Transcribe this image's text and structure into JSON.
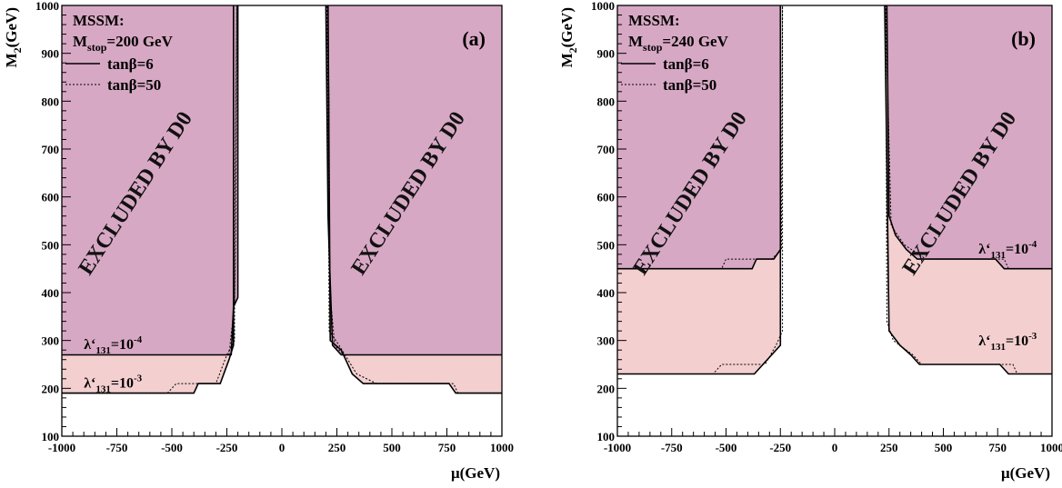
{
  "colors": {
    "strong_region": "#d7a8c4",
    "weak_region": "#f3cfd0",
    "frame": "#000000"
  },
  "labels": {
    "excluded": "EXCLUDED BY D0",
    "legend_title": "MSSM:",
    "legend_solid": "tanβ=6",
    "legend_dotted": "tanβ=50",
    "lambda_prefix": "λ‘",
    "lambda_sub": "131",
    "lambda_base": "=10",
    "x_title": "μ(GeV)",
    "y_title_m": "M",
    "y_title_sub": "2",
    "y_title_unit": "(GeV)"
  },
  "chart_data": [
    {
      "type": "area",
      "panel_label": "(a)",
      "stop_mass": "=200 GeV",
      "xlabel": "μ(GeV)",
      "ylabel": "M2(GeV)",
      "xlim": [
        -1000,
        1000
      ],
      "ylim": [
        100,
        1000
      ],
      "x_ticks": [
        -1000,
        -750,
        -500,
        -250,
        0,
        250,
        500,
        750,
        1000
      ],
      "y_ticks": [
        100,
        200,
        300,
        400,
        500,
        600,
        700,
        800,
        900,
        1000
      ],
      "series": [
        {
          "name": "λ‘131=10-3",
          "exponent": "-3",
          "left_region": [
            [
              -1000,
              190
            ],
            [
              -400,
              190
            ],
            [
              -380,
              210
            ],
            [
              -280,
              210
            ],
            [
              -240,
              260
            ],
            [
              -220,
              290
            ],
            [
              -220,
              1000
            ],
            [
              -1000,
              1000
            ]
          ],
          "right_region": [
            [
              1000,
              190
            ],
            [
              790,
              190
            ],
            [
              760,
              210
            ],
            [
              370,
              210
            ],
            [
              320,
              230
            ],
            [
              270,
              280
            ],
            [
              220,
              300
            ],
            [
              210,
              1000
            ],
            [
              1000,
              1000
            ]
          ],
          "dotted_left": [
            [
              -1000,
              190
            ],
            [
              -520,
              190
            ],
            [
              -480,
              210
            ],
            [
              -300,
              210
            ],
            [
              -250,
              270
            ],
            [
              -215,
              300
            ],
            [
              -215,
              520
            ],
            [
              -205,
              1000
            ]
          ],
          "dotted_right": [
            [
              1000,
              190
            ],
            [
              800,
              190
            ],
            [
              780,
              210
            ],
            [
              430,
              210
            ],
            [
              340,
              230
            ],
            [
              260,
              290
            ],
            [
              215,
              320
            ],
            [
              210,
              800
            ],
            [
              205,
              1000
            ]
          ]
        },
        {
          "name": "λ‘131=10-4",
          "exponent": "-4",
          "left_region": [
            [
              -1000,
              270
            ],
            [
              -230,
              270
            ],
            [
              -220,
              370
            ],
            [
              -200,
              390
            ],
            [
              -200,
              1000
            ],
            [
              -1000,
              1000
            ]
          ],
          "right_region": [
            [
              1000,
              270
            ],
            [
              270,
              270
            ],
            [
              230,
              290
            ],
            [
              220,
              420
            ],
            [
              210,
              560
            ],
            [
              200,
              1000
            ],
            [
              1000,
              1000
            ]
          ],
          "dotted_left": [
            [
              -1000,
              270
            ],
            [
              -240,
              270
            ],
            [
              -215,
              380
            ],
            [
              -210,
              520
            ],
            [
              -205,
              1000
            ]
          ],
          "dotted_right": [
            [
              1000,
              270
            ],
            [
              280,
              270
            ],
            [
              240,
              290
            ],
            [
              215,
              420
            ],
            [
              215,
              800
            ],
            [
              205,
              1000
            ]
          ]
        }
      ]
    },
    {
      "type": "area",
      "panel_label": "(b)",
      "stop_mass": "=240 GeV",
      "xlabel": "μ(GeV)",
      "ylabel": "M2(GeV)",
      "xlim": [
        -1000,
        1000
      ],
      "ylim": [
        100,
        1000
      ],
      "x_ticks": [
        -1000,
        -750,
        -500,
        -250,
        0,
        250,
        500,
        750,
        1000
      ],
      "y_ticks": [
        100,
        200,
        300,
        400,
        500,
        600,
        700,
        800,
        900,
        1000
      ],
      "series": [
        {
          "name": "λ‘131=10-3",
          "exponent": "-3",
          "left_region": [
            [
              -1000,
              230
            ],
            [
              -370,
              230
            ],
            [
              -330,
              250
            ],
            [
              -290,
              270
            ],
            [
              -250,
              290
            ],
            [
              -250,
              1000
            ],
            [
              -1000,
              1000
            ]
          ],
          "right_region": [
            [
              1000,
              230
            ],
            [
              800,
              230
            ],
            [
              760,
              250
            ],
            [
              390,
              250
            ],
            [
              350,
              270
            ],
            [
              300,
              290
            ],
            [
              250,
              320
            ],
            [
              230,
              1000
            ],
            [
              1000,
              1000
            ]
          ],
          "dotted_left": [
            [
              -1000,
              230
            ],
            [
              -560,
              230
            ],
            [
              -520,
              250
            ],
            [
              -320,
              250
            ],
            [
              -270,
              290
            ],
            [
              -240,
              320
            ],
            [
              -240,
              1000
            ]
          ],
          "dotted_right": [
            [
              1000,
              230
            ],
            [
              840,
              230
            ],
            [
              820,
              250
            ],
            [
              400,
              250
            ],
            [
              360,
              270
            ],
            [
              270,
              300
            ],
            [
              240,
              340
            ],
            [
              235,
              1000
            ]
          ]
        },
        {
          "name": "λ‘131=10-4",
          "exponent": "-4",
          "left_region": [
            [
              -1000,
              450
            ],
            [
              -380,
              450
            ],
            [
              -360,
              470
            ],
            [
              -280,
              470
            ],
            [
              -250,
              490
            ],
            [
              -250,
              1000
            ],
            [
              -1000,
              1000
            ]
          ],
          "right_region": [
            [
              1000,
              450
            ],
            [
              780,
              450
            ],
            [
              740,
              470
            ],
            [
              380,
              470
            ],
            [
              330,
              490
            ],
            [
              280,
              520
            ],
            [
              250,
              560
            ],
            [
              240,
              1000
            ],
            [
              1000,
              1000
            ]
          ],
          "dotted_left": [
            [
              -1000,
              450
            ],
            [
              -520,
              450
            ],
            [
              -500,
              470
            ],
            [
              -290,
              470
            ],
            [
              -245,
              490
            ],
            [
              -240,
              1000
            ]
          ],
          "dotted_right": [
            [
              1000,
              450
            ],
            [
              800,
              450
            ],
            [
              780,
              470
            ],
            [
              420,
              470
            ],
            [
              320,
              500
            ],
            [
              260,
              540
            ],
            [
              245,
              800
            ],
            [
              235,
              1000
            ]
          ]
        }
      ]
    }
  ]
}
